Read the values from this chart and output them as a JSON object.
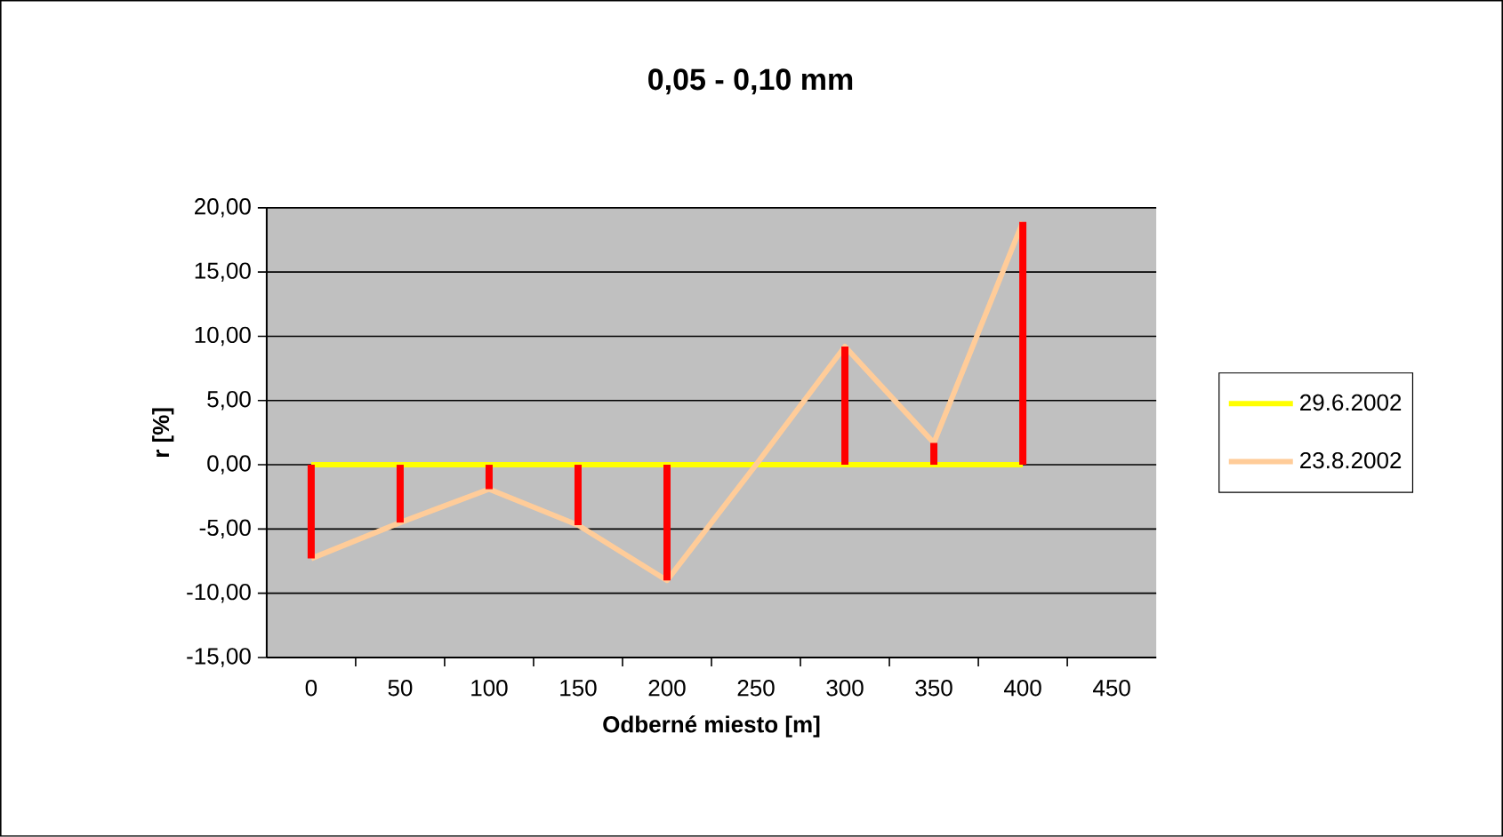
{
  "chart_data": {
    "type": "line",
    "title": "0,05 - 0,10 mm",
    "xlabel": "Odberné miesto [m]",
    "ylabel": "r [%]",
    "categories": [
      "0",
      "50",
      "100",
      "150",
      "200",
      "250",
      "300",
      "350",
      "400",
      "450"
    ],
    "series": [
      {
        "name": "29.6.2002",
        "color": "#ffff00",
        "values": [
          0,
          0,
          0,
          0,
          0,
          0,
          0,
          0,
          0,
          null
        ]
      },
      {
        "name": "23.8.2002",
        "color": "#ffcc99",
        "values": [
          -7.3,
          -4.5,
          -1.9,
          -4.7,
          -9.0,
          0,
          9.2,
          1.7,
          18.9,
          null
        ]
      },
      {
        "type": "bar",
        "color": "#ff0000",
        "values": [
          -7.3,
          -4.5,
          -1.9,
          -4.7,
          -9.0,
          0,
          9.2,
          1.7,
          18.9,
          null
        ]
      }
    ],
    "ylim": [
      -15,
      20
    ],
    "yticks": [
      {
        "value": -15,
        "label": "-15,00"
      },
      {
        "value": -10,
        "label": "-10,00"
      },
      {
        "value": -5,
        "label": "-5,00"
      },
      {
        "value": 0,
        "label": "0,00"
      },
      {
        "value": 5,
        "label": "5,00"
      },
      {
        "value": 10,
        "label": "10,00"
      },
      {
        "value": 15,
        "label": "15,00"
      },
      {
        "value": 20,
        "label": "20,00"
      }
    ],
    "grid": "y",
    "legend": "right",
    "marker": "none",
    "line_style": "solid"
  }
}
